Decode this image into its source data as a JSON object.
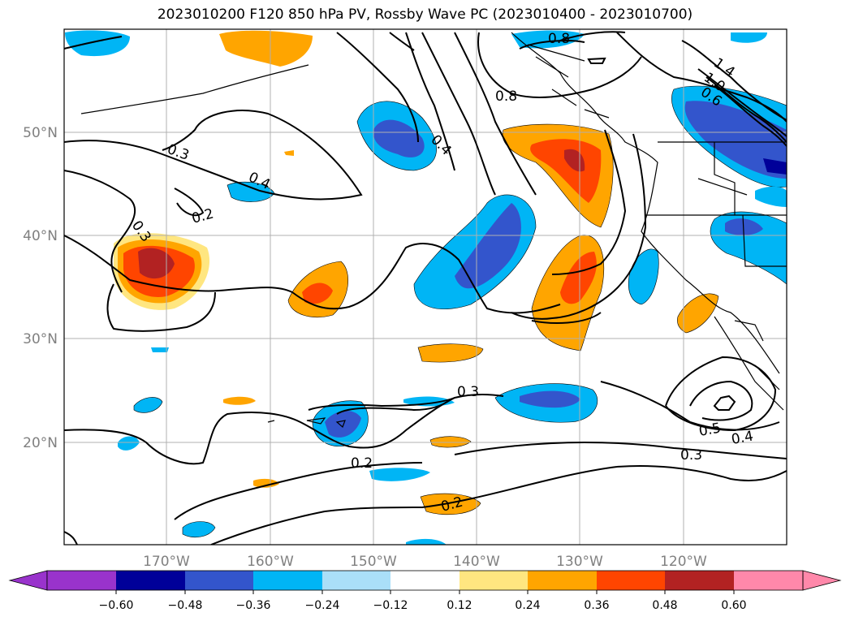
{
  "title": "2023010200 F120 850 hPa PV, Rossby Wave PC (2023010400 - 2023010700)",
  "map": {
    "lat_labels": [
      "50°N",
      "40°N",
      "30°N",
      "20°N"
    ],
    "lon_labels": [
      "170°W",
      "160°W",
      "150°W",
      "140°W",
      "130°W",
      "120°W"
    ],
    "contour_labels": [
      "0.8",
      "0.8",
      "1.4",
      "1.0",
      "0.6",
      "0.4",
      "0.3",
      "0.4",
      "0.2",
      "0.3",
      "0.3",
      "0.2",
      "0.2",
      "0.5",
      "0.4",
      "0.3"
    ],
    "grid": true,
    "line_color": "#000000",
    "grid_color": "#b0b0b0"
  },
  "colorbar": {
    "ticks": [
      "−0.60",
      "−0.48",
      "−0.36",
      "−0.24",
      "−0.12",
      "0.12",
      "0.24",
      "0.36",
      "0.48",
      "0.60"
    ],
    "colors": [
      "#9933cc",
      "#000099",
      "#3355cc",
      "#00b5f5",
      "#aadff8",
      "#ffffff",
      "#ffe680",
      "#ffa500",
      "#ff4500",
      "#b22222",
      "#ff88aa"
    ],
    "extend": "both"
  }
}
